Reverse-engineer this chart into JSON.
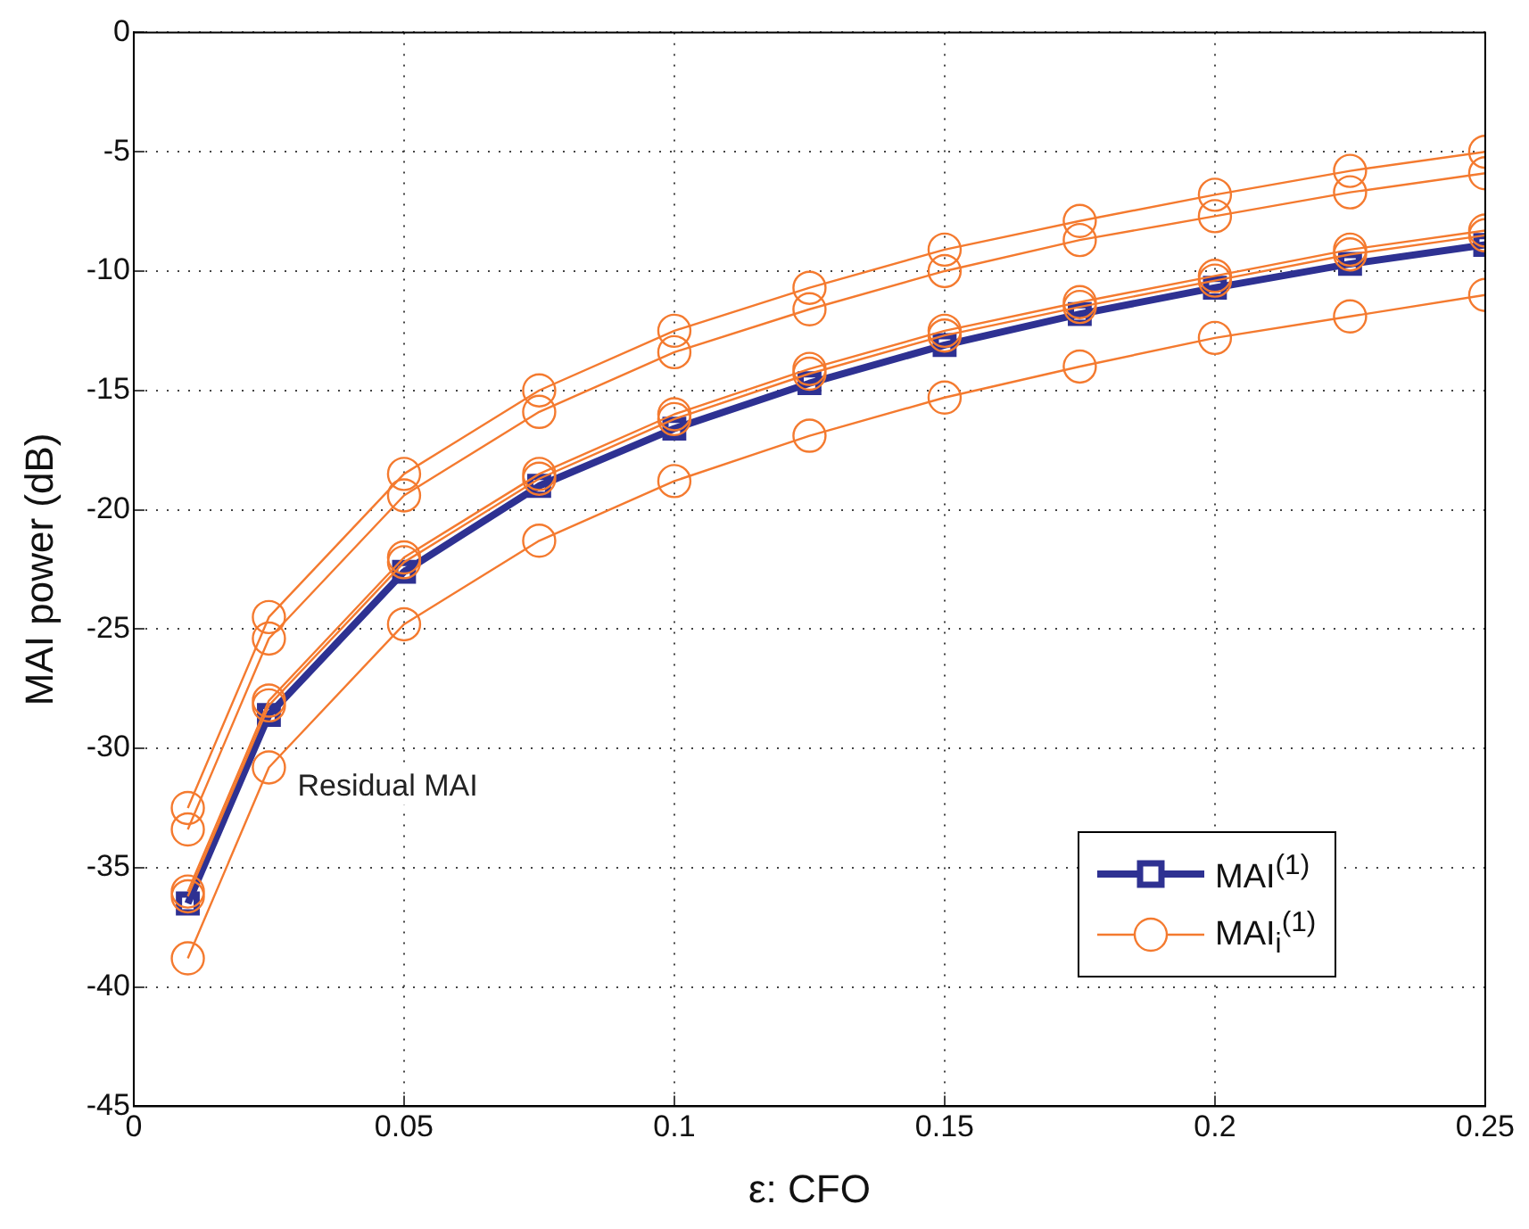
{
  "chart_data": {
    "type": "line",
    "xlabel": "ε: CFO",
    "ylabel": "MAI power (dB)",
    "x": [
      0.01,
      0.025,
      0.05,
      0.075,
      0.1,
      0.125,
      0.15,
      0.175,
      0.2,
      0.225,
      0.25
    ],
    "xlim": [
      0,
      0.25
    ],
    "xticks": [
      0,
      0.05,
      0.1,
      0.15,
      0.2,
      0.25
    ],
    "ylim": [
      -45,
      0
    ],
    "yticks": [
      -45,
      -40,
      -35,
      -30,
      -25,
      -20,
      -15,
      -10,
      -5,
      0
    ],
    "grid": true,
    "legend": "bottom right",
    "line_style": "solid",
    "annotations": [
      {
        "text": "Residual MAI",
        "x": 0.025,
        "y": -30.8
      }
    ],
    "series": [
      {
        "name": "MAI$_{i}$$^{(1)}$",
        "color": "#f47a2f",
        "marker": "circle",
        "values": [
          -32.5,
          -24.5,
          -18.5,
          -15.0,
          -12.5,
          -10.7,
          -9.1,
          -7.9,
          -6.8,
          -5.8,
          -5.0
        ]
      },
      {
        "color": "#f47a2f",
        "marker": "circle",
        "values": [
          -33.4,
          -25.4,
          -19.4,
          -15.9,
          -13.4,
          -11.6,
          -10.0,
          -8.7,
          -7.7,
          -6.7,
          -5.9
        ]
      },
      {
        "color": "#f47a2f",
        "marker": "circle",
        "values": [
          -36.0,
          -28.0,
          -22.0,
          -18.5,
          -16.0,
          -14.1,
          -12.5,
          -11.3,
          -10.2,
          -9.1,
          -8.3
        ]
      },
      {
        "color": "#f47a2f",
        "marker": "circle",
        "values": [
          -36.2,
          -28.2,
          -22.2,
          -18.7,
          -16.2,
          -14.3,
          -12.7,
          -11.5,
          -10.4,
          -9.3,
          -8.5
        ]
      },
      {
        "color": "#f47a2f",
        "marker": "circle",
        "values": [
          -38.8,
          -30.8,
          -24.8,
          -21.3,
          -18.8,
          -16.9,
          -15.3,
          -14.0,
          -12.8,
          -11.9,
          -11.0
        ]
      },
      {
        "name": "MAI$^{(1)}$",
        "color": "#2e3192",
        "marker": "square",
        "values": [
          -36.5,
          -28.6,
          -22.6,
          -19.0,
          -16.6,
          -14.7,
          -13.1,
          -11.8,
          -10.7,
          -9.7,
          -8.9
        ]
      }
    ]
  }
}
